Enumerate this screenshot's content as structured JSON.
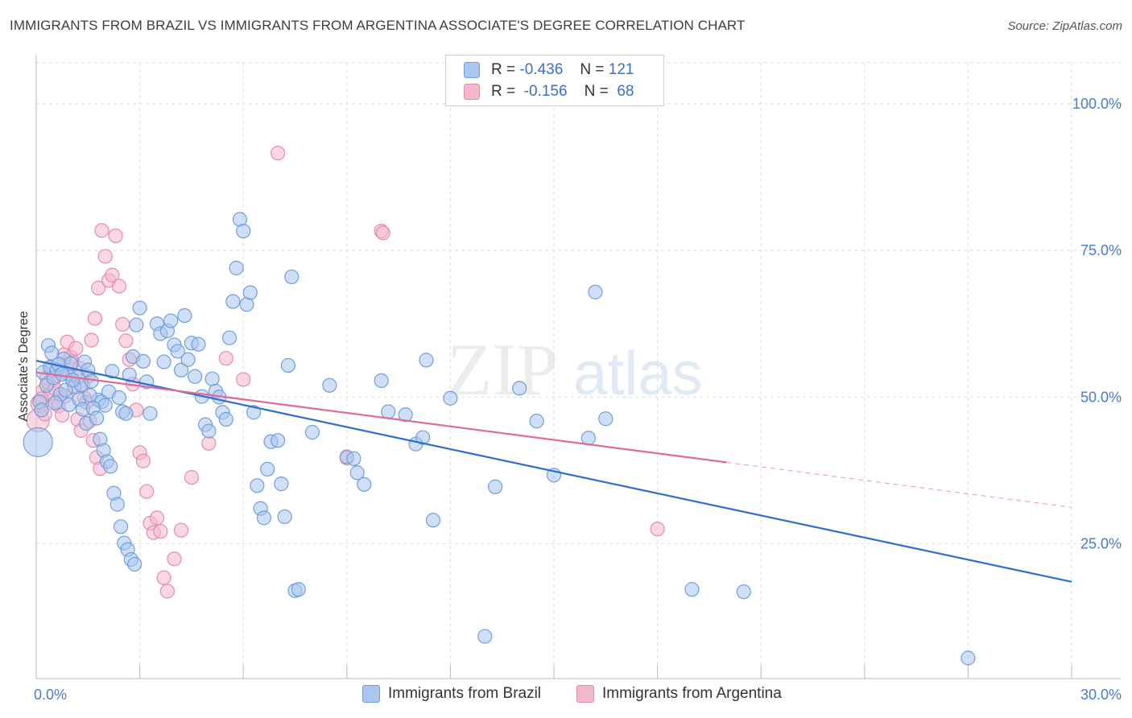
{
  "title": "IMMIGRANTS FROM BRAZIL VS IMMIGRANTS FROM ARGENTINA ASSOCIATE'S DEGREE CORRELATION CHART",
  "source": "Source: ZipAtlas.com",
  "watermark": {
    "zip": "ZIP",
    "atlas": "atlas"
  },
  "legend_stats": [
    {
      "r_label": "R =",
      "r_value": "-0.436",
      "n_label": "N =",
      "n_value": "121"
    },
    {
      "r_label": "R =",
      "r_value": "-0.156",
      "n_label": "N =",
      "n_value": "68"
    }
  ],
  "colors": {
    "brazil_fill": "#a8c6ee",
    "brazil_stroke": "#6f9fdf",
    "brazil_line": "#2d6fd1",
    "argentina_fill": "#f4b8cc",
    "argentina_stroke": "#e88aab",
    "argentina_line": "#e06a93",
    "grid": "#dcdcdc",
    "axis_text": "#4a7bd0"
  },
  "chart_data": {
    "type": "scatter",
    "title": "IMMIGRANTS FROM BRAZIL VS IMMIGRANTS FROM ARGENTINA ASSOCIATE'S DEGREE CORRELATION CHART",
    "xlabel": "",
    "ylabel": "Associate's Degree",
    "xlim": [
      0,
      30
    ],
    "ylim": [
      2,
      107
    ],
    "x_tick_labels": [
      "0.0%",
      "30.0%"
    ],
    "y_ticks": [
      25,
      50,
      75,
      100
    ],
    "y_tick_labels": [
      "25.0%",
      "50.0%",
      "75.0%",
      "100.0%"
    ],
    "legend_position": "top-center",
    "series": [
      {
        "name": "Immigrants from Brazil",
        "r": -0.436,
        "n": 121,
        "trend": {
          "x": [
            0,
            30
          ],
          "y": [
            56.2,
            18.5
          ],
          "dashed_from": null
        },
        "points": [
          [
            0.2,
            54.2
          ],
          [
            0.3,
            52.0
          ],
          [
            0.4,
            55.1
          ],
          [
            0.5,
            53.3
          ],
          [
            0.6,
            54.7
          ],
          [
            0.7,
            50.5
          ],
          [
            0.8,
            56.5
          ],
          [
            0.9,
            54.0
          ],
          [
            1.0,
            55.7
          ],
          [
            1.1,
            51.7
          ],
          [
            1.2,
            53.4
          ],
          [
            1.3,
            52.1
          ],
          [
            1.4,
            56.0
          ],
          [
            1.5,
            54.6
          ],
          [
            1.6,
            52.7
          ],
          [
            1.8,
            49.5
          ],
          [
            1.9,
            49.2
          ],
          [
            2.0,
            48.6
          ],
          [
            2.1,
            50.9
          ],
          [
            2.2,
            54.4
          ],
          [
            2.4,
            49.9
          ],
          [
            2.5,
            47.5
          ],
          [
            2.6,
            47.2
          ],
          [
            2.7,
            53.8
          ],
          [
            2.8,
            56.9
          ],
          [
            2.9,
            62.3
          ],
          [
            3.0,
            65.2
          ],
          [
            3.1,
            56.1
          ],
          [
            3.2,
            52.6
          ],
          [
            3.3,
            47.2
          ],
          [
            3.5,
            62.5
          ],
          [
            3.6,
            60.8
          ],
          [
            3.7,
            56.0
          ],
          [
            3.8,
            61.3
          ],
          [
            3.9,
            63.0
          ],
          [
            4.0,
            58.9
          ],
          [
            4.1,
            57.8
          ],
          [
            4.2,
            54.6
          ],
          [
            4.3,
            63.9
          ],
          [
            4.4,
            56.4
          ],
          [
            4.5,
            59.2
          ],
          [
            4.6,
            53.5
          ],
          [
            4.7,
            59.0
          ],
          [
            4.8,
            50.1
          ],
          [
            4.9,
            45.3
          ],
          [
            5.0,
            44.2
          ],
          [
            5.1,
            53.1
          ],
          [
            5.2,
            51.0
          ],
          [
            5.3,
            50.0
          ],
          [
            5.4,
            47.4
          ],
          [
            5.5,
            46.2
          ],
          [
            5.6,
            60.1
          ],
          [
            5.7,
            66.3
          ],
          [
            5.8,
            72.0
          ],
          [
            5.9,
            80.3
          ],
          [
            6.0,
            78.3
          ],
          [
            6.1,
            65.8
          ],
          [
            6.2,
            67.8
          ],
          [
            6.3,
            47.4
          ],
          [
            6.4,
            34.9
          ],
          [
            6.5,
            31.0
          ],
          [
            6.6,
            29.4
          ],
          [
            6.7,
            37.7
          ],
          [
            6.8,
            42.4
          ],
          [
            7.0,
            42.6
          ],
          [
            7.1,
            35.2
          ],
          [
            7.2,
            29.6
          ],
          [
            7.3,
            55.4
          ],
          [
            7.4,
            70.5
          ],
          [
            7.5,
            17.0
          ],
          [
            7.6,
            17.2
          ],
          [
            8.0,
            44.0
          ],
          [
            8.5,
            52.0
          ],
          [
            9.0,
            39.8
          ],
          [
            9.2,
            39.5
          ],
          [
            9.3,
            37.1
          ],
          [
            9.5,
            35.1
          ],
          [
            10.0,
            52.8
          ],
          [
            10.2,
            47.5
          ],
          [
            10.7,
            47.0
          ],
          [
            11.0,
            42.0
          ],
          [
            11.2,
            43.1
          ],
          [
            11.3,
            56.3
          ],
          [
            11.5,
            29.0
          ],
          [
            12.0,
            49.8
          ],
          [
            13.0,
            9.2
          ],
          [
            13.3,
            34.7
          ],
          [
            14.0,
            51.5
          ],
          [
            14.5,
            45.9
          ],
          [
            15.0,
            36.7
          ],
          [
            16.0,
            43.0
          ],
          [
            16.2,
            67.9
          ],
          [
            16.5,
            46.3
          ],
          [
            19.0,
            17.2
          ],
          [
            20.5,
            16.8
          ],
          [
            27.0,
            5.5
          ],
          [
            0.05,
            42.3
          ],
          [
            0.1,
            49.2
          ],
          [
            0.15,
            47.8
          ],
          [
            0.35,
            58.8
          ],
          [
            0.45,
            57.5
          ],
          [
            0.55,
            49.0
          ],
          [
            0.65,
            55.6
          ],
          [
            0.75,
            53.9
          ],
          [
            0.85,
            51.2
          ],
          [
            0.95,
            48.7
          ],
          [
            1.05,
            52.9
          ],
          [
            1.25,
            49.6
          ],
          [
            1.35,
            47.9
          ],
          [
            1.45,
            45.5
          ],
          [
            1.55,
            50.3
          ],
          [
            1.65,
            48.1
          ],
          [
            1.75,
            46.4
          ],
          [
            1.85,
            42.8
          ],
          [
            1.95,
            40.9
          ],
          [
            2.05,
            39.0
          ],
          [
            2.15,
            38.2
          ],
          [
            2.25,
            33.6
          ],
          [
            2.35,
            31.7
          ],
          [
            2.45,
            27.9
          ],
          [
            2.55,
            25.1
          ],
          [
            2.65,
            24.0
          ],
          [
            2.75,
            22.3
          ],
          [
            2.85,
            21.5
          ]
        ]
      },
      {
        "name": "Immigrants from Argentina",
        "r": -0.156,
        "n": 68,
        "trend": {
          "x": [
            0,
            30
          ],
          "y": [
            54.2,
            31.2
          ],
          "dashed_from": 20.0
        },
        "points": [
          [
            0.05,
            46.0
          ],
          [
            0.1,
            48.9
          ],
          [
            0.2,
            51.1
          ],
          [
            0.3,
            53.3
          ],
          [
            0.4,
            50.6
          ],
          [
            0.5,
            52.9
          ],
          [
            0.6,
            49.3
          ],
          [
            0.7,
            54.4
          ],
          [
            0.8,
            57.2
          ],
          [
            0.9,
            59.4
          ],
          [
            1.0,
            56.8
          ],
          [
            1.1,
            51.9
          ],
          [
            1.2,
            46.2
          ],
          [
            1.3,
            44.3
          ],
          [
            1.4,
            49.8
          ],
          [
            1.5,
            53.5
          ],
          [
            1.6,
            59.7
          ],
          [
            1.7,
            63.4
          ],
          [
            1.8,
            68.6
          ],
          [
            1.9,
            78.4
          ],
          [
            2.0,
            74.0
          ],
          [
            2.1,
            69.9
          ],
          [
            2.2,
            70.8
          ],
          [
            2.3,
            77.5
          ],
          [
            2.4,
            68.9
          ],
          [
            2.5,
            62.4
          ],
          [
            2.6,
            59.6
          ],
          [
            2.7,
            56.4
          ],
          [
            2.8,
            52.2
          ],
          [
            2.9,
            47.8
          ],
          [
            3.0,
            40.5
          ],
          [
            3.1,
            39.1
          ],
          [
            3.2,
            33.9
          ],
          [
            3.3,
            28.5
          ],
          [
            3.4,
            26.9
          ],
          [
            3.5,
            29.4
          ],
          [
            3.6,
            27.1
          ],
          [
            3.7,
            19.2
          ],
          [
            3.8,
            16.9
          ],
          [
            4.0,
            22.4
          ],
          [
            4.2,
            27.3
          ],
          [
            4.5,
            36.3
          ],
          [
            5.0,
            42.1
          ],
          [
            5.5,
            56.6
          ],
          [
            6.0,
            53.0
          ],
          [
            7.0,
            91.6
          ],
          [
            9.0,
            39.6
          ],
          [
            10.0,
            78.3
          ],
          [
            10.05,
            78.0
          ],
          [
            18.0,
            27.5
          ],
          [
            0.15,
            49.7
          ],
          [
            0.25,
            47.1
          ],
          [
            0.35,
            52.4
          ],
          [
            0.45,
            55.0
          ],
          [
            0.55,
            51.4
          ],
          [
            0.65,
            48.5
          ],
          [
            0.75,
            46.9
          ],
          [
            0.85,
            50.2
          ],
          [
            0.95,
            53.8
          ],
          [
            1.05,
            55.9
          ],
          [
            1.15,
            58.3
          ],
          [
            1.25,
            54.9
          ],
          [
            1.35,
            52.0
          ],
          [
            1.45,
            49.1
          ],
          [
            1.55,
            45.9
          ],
          [
            1.65,
            42.6
          ],
          [
            1.75,
            39.7
          ],
          [
            1.85,
            37.8
          ]
        ]
      }
    ]
  },
  "bottom_legend": [
    {
      "label": "Immigrants from Brazil"
    },
    {
      "label": "Immigrants from Argentina"
    }
  ]
}
